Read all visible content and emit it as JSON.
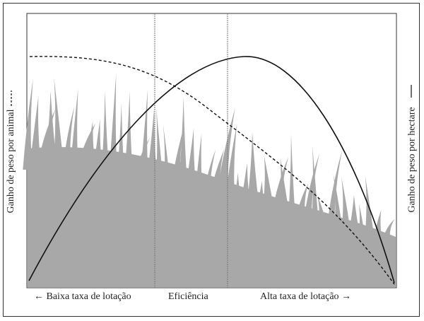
{
  "left_axis_label": "Ganho de peso por animal",
  "right_axis_label": "Ganho de peso por hectare",
  "bottom_labels": {
    "low": "← Baixa taxa de lotação",
    "mid": "Eficiência",
    "high": "Alta taxa de lotação →"
  },
  "colors": {
    "grass": "#a8a8a8",
    "line": "#111111",
    "divider": "#777777"
  }
}
